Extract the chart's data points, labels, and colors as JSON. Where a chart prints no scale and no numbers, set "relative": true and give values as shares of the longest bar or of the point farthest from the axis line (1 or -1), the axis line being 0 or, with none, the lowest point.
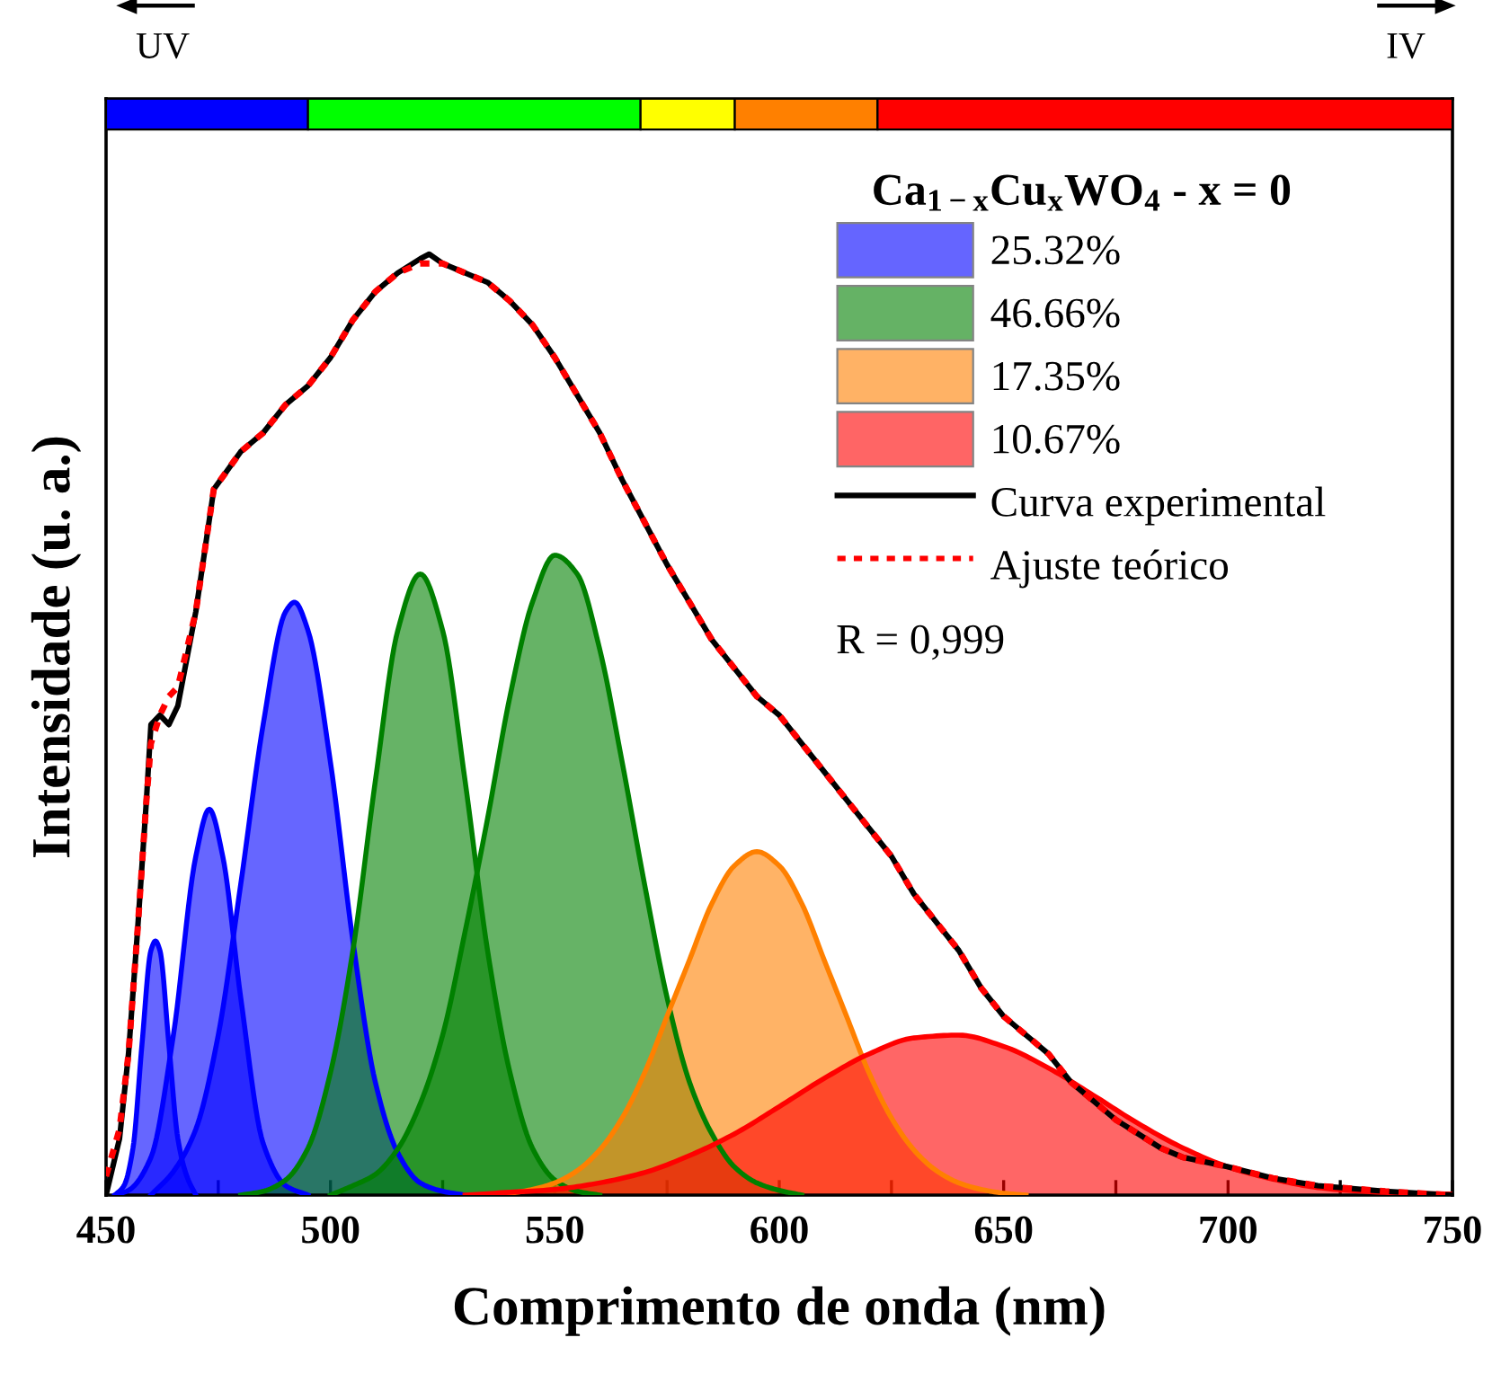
{
  "chart_data": {
    "type": "area",
    "relative": true,
    "xlabel": "Comprimento de onda (nm)",
    "ylabel": "Intensidade (u. a.)",
    "legend_title": "Ca$_{1−x}$Cu$_{x}$WO$_{4}$ - x = 0",
    "annotations": [
      "R = 0,999",
      "UV",
      "IV"
    ],
    "xlim": [
      450,
      750
    ],
    "xticks": [
      450,
      {
        "value": 475,
        "label": null
      },
      500,
      {
        "value": 525,
        "label": null
      },
      550,
      {
        "value": 575,
        "label": null
      },
      600,
      {
        "value": 625,
        "label": null
      },
      650,
      {
        "value": 675,
        "label": null
      },
      700,
      {
        "value": 725,
        "label": null
      },
      750
    ],
    "tick_labels": "x",
    "grid": false,
    "legend": "top right",
    "series": [
      {
        "name": "25.32%",
        "color": "#0000ff",
        "x": [
          452,
          454,
          456,
          458,
          460,
          461,
          462,
          464,
          466,
          468,
          470
        ],
        "values": [
          0.0,
          0.01,
          0.05,
          0.16,
          0.26,
          0.27,
          0.26,
          0.16,
          0.06,
          0.02,
          0.0
        ]
      },
      {
        "color": "#0000ff",
        "x": [
          452,
          455,
          460,
          465,
          470,
          473,
          476,
          480,
          485,
          490,
          495
        ],
        "values": [
          0.0,
          0.005,
          0.04,
          0.17,
          0.36,
          0.41,
          0.36,
          0.21,
          0.055,
          0.01,
          0.0
        ]
      },
      {
        "color": "#0000ff",
        "x": [
          460,
          465,
          470,
          475,
          480,
          485,
          490,
          492,
          495,
          500,
          505,
          510,
          515,
          520,
          525,
          530
        ],
        "values": [
          0.0,
          0.025,
          0.07,
          0.17,
          0.33,
          0.5,
          0.62,
          0.63,
          0.6,
          0.46,
          0.27,
          0.12,
          0.045,
          0.013,
          0.004,
          0.0
        ]
      },
      {
        "name": "46.66%",
        "color": "#008000",
        "x": [
          480,
          485,
          490,
          495,
          500,
          505,
          510,
          515,
          520,
          525,
          530,
          535,
          540,
          545,
          550,
          555,
          560
        ],
        "values": [
          0.0,
          0.004,
          0.016,
          0.05,
          0.13,
          0.26,
          0.44,
          0.6,
          0.66,
          0.6,
          0.44,
          0.26,
          0.13,
          0.05,
          0.016,
          0.004,
          0.0
        ]
      },
      {
        "color": "#008000",
        "x": [
          500,
          505,
          510,
          515,
          520,
          525,
          530,
          535,
          540,
          545,
          550,
          555,
          560,
          565,
          570,
          575,
          580,
          585,
          590,
          595,
          600,
          605
        ],
        "values": [
          0.0,
          0.01,
          0.022,
          0.049,
          0.097,
          0.17,
          0.28,
          0.4,
          0.53,
          0.63,
          0.68,
          0.66,
          0.58,
          0.46,
          0.33,
          0.21,
          0.12,
          0.065,
          0.03,
          0.013,
          0.005,
          0.0
        ]
      },
      {
        "name": "17.35%",
        "color": "#ff8000",
        "x": [
          535,
          540,
          545,
          550,
          555,
          560,
          565,
          570,
          575,
          580,
          585,
          590,
          595,
          600,
          605,
          610,
          615,
          620,
          625,
          630,
          635,
          640,
          645,
          650,
          655
        ],
        "values": [
          0.0,
          0.002,
          0.006,
          0.013,
          0.026,
          0.048,
          0.082,
          0.13,
          0.19,
          0.25,
          0.31,
          0.35,
          0.365,
          0.35,
          0.31,
          0.25,
          0.19,
          0.13,
          0.082,
          0.048,
          0.026,
          0.013,
          0.006,
          0.002,
          0.0
        ]
      },
      {
        "name": "10.67%",
        "color": "#ff0000",
        "x": [
          530,
          540,
          550,
          560,
          570,
          580,
          590,
          600,
          610,
          620,
          630,
          640,
          650,
          660,
          670,
          680,
          690,
          700,
          710,
          720,
          730,
          740,
          750
        ],
        "values": [
          0.0,
          0.003,
          0.006,
          0.013,
          0.024,
          0.042,
          0.065,
          0.094,
          0.124,
          0.15,
          0.167,
          0.17,
          0.158,
          0.135,
          0.106,
          0.076,
          0.05,
          0.03,
          0.017,
          0.008,
          0.004,
          0.002,
          0.001
        ]
      },
      {
        "type": "line",
        "name": "Curva experimental",
        "color": "#000000",
        "line_style": "solid",
        "x": [
          450,
          453,
          455,
          457,
          459,
          460,
          462,
          464,
          466,
          470,
          474,
          480,
          485,
          490,
          495,
          500,
          505,
          510,
          515,
          520,
          522,
          525,
          530,
          535,
          540,
          545,
          550,
          555,
          560,
          565,
          570,
          575,
          580,
          585,
          590,
          595,
          600,
          605,
          610,
          615,
          620,
          625,
          630,
          635,
          640,
          645,
          650,
          655,
          660,
          665,
          670,
          675,
          680,
          685,
          690,
          700,
          710,
          720,
          735,
          750
        ],
        "values": [
          0.0,
          0.06,
          0.15,
          0.28,
          0.42,
          0.5,
          0.51,
          0.5,
          0.52,
          0.62,
          0.75,
          0.79,
          0.81,
          0.84,
          0.86,
          0.89,
          0.93,
          0.96,
          0.98,
          0.995,
          1.0,
          0.99,
          0.98,
          0.97,
          0.95,
          0.925,
          0.89,
          0.85,
          0.81,
          0.76,
          0.715,
          0.67,
          0.63,
          0.59,
          0.56,
          0.53,
          0.51,
          0.48,
          0.45,
          0.42,
          0.39,
          0.36,
          0.32,
          0.29,
          0.26,
          0.22,
          0.19,
          0.17,
          0.15,
          0.12,
          0.1,
          0.08,
          0.065,
          0.05,
          0.04,
          0.03,
          0.018,
          0.01,
          0.004,
          0.0
        ]
      },
      {
        "type": "line",
        "name": "Ajuste teórico",
        "color": "#ff0000",
        "line_style": "dotted",
        "x": [
          450,
          453,
          455,
          457,
          459,
          460,
          462,
          464,
          466,
          470,
          474,
          480,
          485,
          490,
          495,
          500,
          505,
          510,
          515,
          520,
          522,
          525,
          530,
          535,
          540,
          545,
          550,
          555,
          560,
          565,
          570,
          575,
          580,
          585,
          590,
          595,
          600,
          605,
          610,
          615,
          620,
          625,
          630,
          635,
          640,
          645,
          650,
          655,
          660,
          665,
          670,
          675,
          680,
          685,
          690,
          700,
          710,
          720,
          735,
          750
        ],
        "values": [
          0.02,
          0.07,
          0.15,
          0.28,
          0.42,
          0.48,
          0.51,
          0.53,
          0.54,
          0.62,
          0.75,
          0.79,
          0.81,
          0.84,
          0.86,
          0.89,
          0.93,
          0.96,
          0.98,
          0.99,
          0.99,
          0.99,
          0.98,
          0.97,
          0.95,
          0.925,
          0.89,
          0.85,
          0.81,
          0.76,
          0.715,
          0.67,
          0.63,
          0.59,
          0.56,
          0.53,
          0.51,
          0.48,
          0.45,
          0.42,
          0.39,
          0.36,
          0.32,
          0.29,
          0.26,
          0.22,
          0.19,
          0.17,
          0.15,
          0.12,
          0.1,
          0.08,
          0.065,
          0.05,
          0.04,
          0.03,
          0.018,
          0.01,
          0.004,
          0.0
        ]
      }
    ]
  }
}
